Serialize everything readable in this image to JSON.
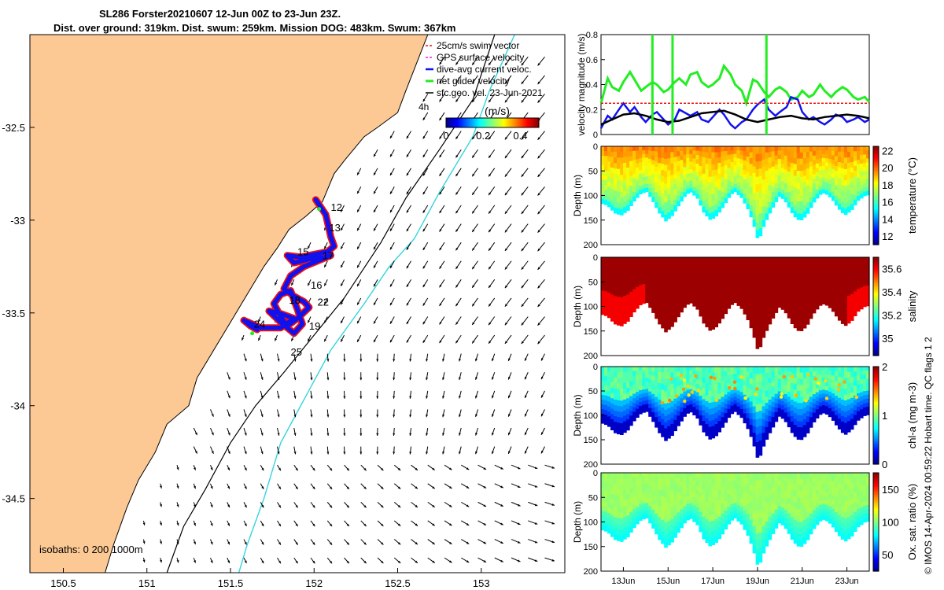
{
  "title_line1": "SL286 Forster20210607 12-Jun 00Z to 23-Jun 23Z.",
  "title_line2": "Dist. over ground: 319km. Dist. swum: 259km. Mission DOG: 483km. Swum: 367km",
  "copyright": "© IMOS 14-Apr-2024 00:59:22 Hobart time. QC flags 1  2",
  "colors": {
    "land": "#FCC994",
    "shelf_isobath": "#000000",
    "deep_isobath": "#35D4DC",
    "track_red": "#EE1111",
    "track_blue": "#1111EE",
    "net_green": "#22EE22",
    "geo_black": "#000000"
  },
  "chart_data": [
    {
      "type": "scatter",
      "name": "trajectory map",
      "xlabel": "longitude",
      "ylabel": "latitude",
      "xlim": [
        150.3,
        153.5
      ],
      "ylim": [
        -34.9,
        -32.0
      ],
      "xticks": [
        "150.5",
        "151",
        "151.5",
        "152",
        "152.5",
        "153"
      ],
      "yticks": [
        "-32.5",
        "-33",
        "-33.5",
        "-34",
        "-34.5"
      ],
      "legend": [
        "25cm/s swim vector",
        "GPS surface velocity",
        "dive-avg current veloc.",
        "net glider velocity",
        "sfc.geo. vel. 23-Jun-2021"
      ],
      "legend_extra": "4h",
      "colorbar": {
        "label": "(m/s)",
        "ticks": [
          "0",
          "0.2",
          "0.4"
        ],
        "range": [
          0,
          0.5
        ]
      },
      "isobath_label": "isobaths: 0   200  1000m",
      "day_labels": [
        {
          "text": "12",
          "lon": 152.1,
          "lat": -32.95
        },
        {
          "text": "13",
          "lon": 152.09,
          "lat": -33.06
        },
        {
          "text": "15",
          "lon": 151.9,
          "lat": -33.19
        },
        {
          "text": "17",
          "lon": 152.05,
          "lat": -33.21
        },
        {
          "text": "16",
          "lon": 151.98,
          "lat": -33.37
        },
        {
          "text": "18",
          "lon": 151.85,
          "lat": -33.45
        },
        {
          "text": "22",
          "lon": 152.02,
          "lat": -33.46
        },
        {
          "text": "24",
          "lon": 151.64,
          "lat": -33.58
        },
        {
          "text": "19",
          "lon": 151.97,
          "lat": -33.59
        },
        {
          "text": "25",
          "lon": 151.86,
          "lat": -33.73
        }
      ],
      "track": [
        [
          152.01,
          -32.89
        ],
        [
          152.07,
          -32.97
        ],
        [
          152.1,
          -33.09
        ],
        [
          152.12,
          -33.14
        ],
        [
          152.08,
          -33.17
        ],
        [
          151.97,
          -33.19
        ],
        [
          151.92,
          -33.2
        ],
        [
          151.84,
          -33.19
        ],
        [
          151.88,
          -33.23
        ],
        [
          151.97,
          -33.21
        ],
        [
          152.06,
          -33.2
        ],
        [
          152.1,
          -33.19
        ],
        [
          151.94,
          -33.25
        ],
        [
          151.86,
          -33.3
        ],
        [
          151.82,
          -33.37
        ],
        [
          151.88,
          -33.41
        ],
        [
          151.94,
          -33.44
        ],
        [
          151.97,
          -33.47
        ],
        [
          151.9,
          -33.53
        ],
        [
          151.84,
          -33.57
        ],
        [
          151.8,
          -33.52
        ],
        [
          151.76,
          -33.45
        ],
        [
          151.8,
          -33.4
        ],
        [
          151.86,
          -33.38
        ],
        [
          151.9,
          -33.48
        ],
        [
          151.93,
          -33.56
        ],
        [
          151.88,
          -33.61
        ],
        [
          151.8,
          -33.55
        ],
        [
          151.73,
          -33.49
        ],
        [
          151.79,
          -33.5
        ],
        [
          151.88,
          -33.53
        ],
        [
          151.8,
          -33.58
        ],
        [
          151.68,
          -33.58
        ],
        [
          151.58,
          -33.54
        ],
        [
          151.62,
          -33.57
        ],
        [
          151.66,
          -33.59
        ]
      ],
      "net_vel_arrows": [
        [
          152.03,
          -32.94
        ],
        [
          151.63,
          -33.61
        ]
      ]
    },
    {
      "type": "line",
      "name": "velocity magnitude",
      "ylabel": "velocity magnitude (m/s)",
      "ylim": [
        0,
        0.8
      ],
      "yticks": [
        "0",
        "0.2",
        "0.4",
        "0.6",
        "0.8"
      ],
      "x_days": [
        12,
        24
      ],
      "series": [
        {
          "name": "net glider velocity",
          "color": "#22EE22",
          "x": [
            12.0,
            12.3,
            12.5,
            12.8,
            13.0,
            13.3,
            13.5,
            13.8,
            14.0,
            14.3,
            14.5,
            14.8,
            15.0,
            15.3,
            15.5,
            15.8,
            16.0,
            16.3,
            16.5,
            16.8,
            17.0,
            17.3,
            17.5,
            17.8,
            18.0,
            18.3,
            18.5,
            18.8,
            19.0,
            19.3,
            19.5,
            19.8,
            20.0,
            20.3,
            20.5,
            20.8,
            21.0,
            21.3,
            21.5,
            21.8,
            22.0,
            22.3,
            22.5,
            22.8,
            23.0,
            23.3,
            23.5,
            23.8,
            24.0
          ],
          "y": [
            0.25,
            0.45,
            0.38,
            0.35,
            0.42,
            0.5,
            0.44,
            0.35,
            0.38,
            0.42,
            0.4,
            0.34,
            0.36,
            0.42,
            0.45,
            0.4,
            0.48,
            0.5,
            0.42,
            0.38,
            0.4,
            0.45,
            0.55,
            0.48,
            0.4,
            0.35,
            0.25,
            0.44,
            0.42,
            0.34,
            0.3,
            0.36,
            0.38,
            0.34,
            0.28,
            0.3,
            0.35,
            0.3,
            0.32,
            0.4,
            0.35,
            0.3,
            0.34,
            0.38,
            0.36,
            0.3,
            0.28,
            0.3,
            0.26
          ]
        },
        {
          "name": "dive-avg current veloc.",
          "color": "#1111EE",
          "x": [
            12.0,
            12.3,
            12.5,
            12.8,
            13.0,
            13.3,
            13.5,
            13.8,
            14.0,
            14.3,
            14.5,
            14.8,
            15.0,
            15.3,
            15.5,
            15.8,
            16.0,
            16.3,
            16.5,
            16.8,
            17.0,
            17.3,
            17.5,
            17.8,
            18.0,
            18.3,
            18.5,
            18.8,
            19.0,
            19.3,
            19.5,
            19.8,
            20.0,
            20.3,
            20.5,
            20.8,
            21.0,
            21.3,
            21.5,
            21.8,
            22.0,
            22.3,
            22.5,
            22.8,
            23.0,
            23.3,
            23.5,
            23.8,
            24.0
          ],
          "y": [
            0.05,
            0.15,
            0.12,
            0.2,
            0.25,
            0.18,
            0.22,
            0.14,
            0.1,
            0.16,
            0.18,
            0.12,
            0.08,
            0.12,
            0.2,
            0.17,
            0.15,
            0.18,
            0.12,
            0.1,
            0.14,
            0.2,
            0.16,
            0.08,
            0.05,
            0.1,
            0.12,
            0.2,
            0.24,
            0.28,
            0.2,
            0.15,
            0.18,
            0.22,
            0.3,
            0.28,
            0.18,
            0.12,
            0.14,
            0.1,
            0.08,
            0.12,
            0.16,
            0.14,
            0.1,
            0.12,
            0.14,
            0.1,
            0.12
          ]
        },
        {
          "name": "sfc.geo. vel.",
          "color": "#000000",
          "x": [
            12.0,
            12.5,
            13.0,
            13.5,
            14.0,
            14.5,
            15.0,
            15.5,
            16.0,
            16.5,
            17.0,
            17.5,
            18.0,
            18.5,
            19.0,
            19.5,
            20.0,
            20.5,
            21.0,
            21.5,
            22.0,
            22.5,
            23.0,
            23.5,
            24.0
          ],
          "y": [
            0.08,
            0.12,
            0.16,
            0.17,
            0.15,
            0.12,
            0.1,
            0.11,
            0.14,
            0.17,
            0.18,
            0.19,
            0.16,
            0.12,
            0.1,
            0.12,
            0.14,
            0.15,
            0.13,
            0.12,
            0.14,
            0.15,
            0.16,
            0.15,
            0.13
          ]
        },
        {
          "name": "25cm/s swim vector",
          "color": "#EE1111",
          "x": [
            12.0,
            24.0
          ],
          "y": [
            0.25,
            0.25
          ]
        }
      ],
      "spikes": [
        14.3,
        15.2,
        19.4
      ]
    },
    {
      "type": "heatmap",
      "name": "temperature",
      "ylabel": "Depth (m)",
      "ylim": [
        200,
        0
      ],
      "yticks": [
        "0",
        "50",
        "100",
        "150",
        "200"
      ],
      "colorbar": {
        "label": "temperature (°C)",
        "ticks": [
          "12",
          "14",
          "16",
          "18",
          "20",
          "22"
        ],
        "range": [
          11,
          22.5
        ]
      },
      "surface_value": 19.5,
      "deep_value": 16
    },
    {
      "type": "heatmap",
      "name": "salinity",
      "ylabel": "Depth (m)",
      "ylim": [
        200,
        0
      ],
      "yticks": [
        "0",
        "50",
        "100",
        "150",
        "200"
      ],
      "colorbar": {
        "label": "salinity",
        "ticks": [
          "35",
          "35.2",
          "35.4",
          "35.6"
        ],
        "range": [
          34.85,
          35.7
        ]
      },
      "surface_value": 35.7,
      "deep_value": 35.6
    },
    {
      "type": "heatmap",
      "name": "chl-a",
      "ylabel": "Depth (m)",
      "ylim": [
        200,
        0
      ],
      "yticks": [
        "0",
        "50",
        "100",
        "150",
        "200"
      ],
      "colorbar": {
        "label": "chl-a (mg m-3)",
        "ticks": [
          "0",
          "1",
          "2"
        ],
        "range": [
          0,
          2
        ]
      },
      "surface_value": 0.8,
      "deep_value": 0.1
    },
    {
      "type": "heatmap",
      "name": "oxygen",
      "ylabel": "Depth (m)",
      "ylim": [
        200,
        0
      ],
      "yticks": [
        "0",
        "50",
        "100",
        "150",
        "200"
      ],
      "colorbar": {
        "label": "Ox. sat. ratio (%)",
        "ticks": [
          "50",
          "100",
          "150"
        ],
        "range": [
          25,
          175
        ]
      },
      "surface_value": 105,
      "deep_value": 85,
      "xticks": [
        "13Jun",
        "15Jun",
        "17Jun",
        "19Jun",
        "21Jun",
        "23Jun"
      ],
      "xtick_days": [
        13,
        15,
        17,
        19,
        21,
        23
      ]
    }
  ],
  "profile_bottom": [
    [
      12.0,
      115
    ],
    [
      12.3,
      120
    ],
    [
      12.6,
      135
    ],
    [
      12.9,
      140
    ],
    [
      13.2,
      130
    ],
    [
      13.5,
      110
    ],
    [
      13.8,
      95
    ],
    [
      14.05,
      92
    ],
    [
      14.3,
      110
    ],
    [
      14.6,
      135
    ],
    [
      14.9,
      152
    ],
    [
      15.2,
      140
    ],
    [
      15.5,
      118
    ],
    [
      15.8,
      98
    ],
    [
      16.0,
      92
    ],
    [
      16.3,
      105
    ],
    [
      16.6,
      135
    ],
    [
      16.9,
      150
    ],
    [
      17.2,
      140
    ],
    [
      17.5,
      120
    ],
    [
      17.8,
      98
    ],
    [
      18.0,
      92
    ],
    [
      18.3,
      105
    ],
    [
      18.6,
      130
    ],
    [
      18.8,
      155
    ],
    [
      18.95,
      180
    ],
    [
      19.05,
      195
    ],
    [
      19.2,
      170
    ],
    [
      19.5,
      140
    ],
    [
      19.8,
      115
    ],
    [
      20.0,
      100
    ],
    [
      20.3,
      115
    ],
    [
      20.6,
      140
    ],
    [
      20.9,
      152
    ],
    [
      21.2,
      140
    ],
    [
      21.5,
      115
    ],
    [
      21.8,
      98
    ],
    [
      22.0,
      94
    ],
    [
      22.3,
      105
    ],
    [
      22.6,
      125
    ],
    [
      22.9,
      140
    ],
    [
      23.2,
      130
    ],
    [
      23.5,
      110
    ],
    [
      23.8,
      100
    ],
    [
      24.0,
      98
    ]
  ]
}
